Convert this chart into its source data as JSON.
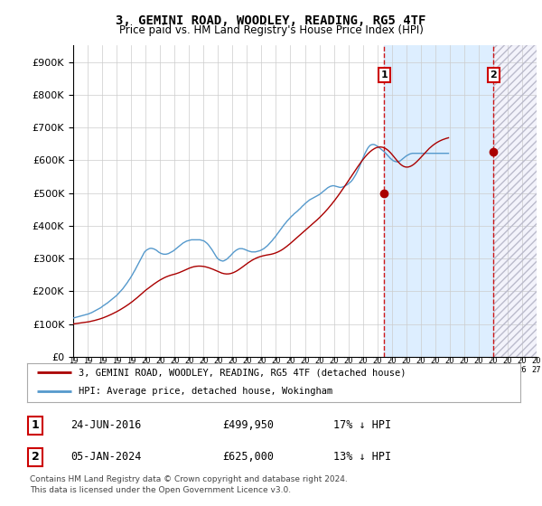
{
  "title": "3, GEMINI ROAD, WOODLEY, READING, RG5 4TF",
  "subtitle": "Price paid vs. HM Land Registry's House Price Index (HPI)",
  "legend_line1": "3, GEMINI ROAD, WOODLEY, READING, RG5 4TF (detached house)",
  "legend_line2": "HPI: Average price, detached house, Wokingham",
  "footnote1": "Contains HM Land Registry data © Crown copyright and database right 2024.",
  "footnote2": "This data is licensed under the Open Government Licence v3.0.",
  "transaction1_label": "1",
  "transaction1_date": "24-JUN-2016",
  "transaction1_price": "£499,950",
  "transaction1_hpi": "17% ↓ HPI",
  "transaction2_label": "2",
  "transaction2_date": "05-JAN-2024",
  "transaction2_price": "£625,000",
  "transaction2_hpi": "13% ↓ HPI",
  "hpi_color": "#5599cc",
  "price_color": "#aa0000",
  "vline_color": "#cc0000",
  "plot_bg": "#ffffff",
  "shade_between_color": "#ddeeff",
  "shade_future_color": "#e8e8e8",
  "ylim": [
    0,
    950000
  ],
  "yticks": [
    0,
    100000,
    200000,
    300000,
    400000,
    500000,
    600000,
    700000,
    800000,
    900000
  ],
  "xlim_start": 1995,
  "xlim_end": 2027,
  "transaction1_x": 2016.47,
  "transaction2_x": 2024.02,
  "transaction1_y": 499950,
  "transaction2_y": 625000,
  "hpi_data_monthly": {
    "start_year": 1995,
    "start_month": 1,
    "values": [
      118000,
      119000,
      120000,
      121000,
      122000,
      123000,
      124000,
      125000,
      126000,
      127000,
      128000,
      129000,
      130000,
      131000,
      133000,
      134000,
      136000,
      138000,
      140000,
      142000,
      144000,
      146000,
      148000,
      150000,
      153000,
      156000,
      158000,
      161000,
      163000,
      166000,
      169000,
      172000,
      175000,
      178000,
      181000,
      184000,
      187000,
      191000,
      195000,
      199000,
      203000,
      207000,
      212000,
      217000,
      222000,
      227000,
      233000,
      238000,
      244000,
      250000,
      257000,
      263000,
      270000,
      277000,
      284000,
      291000,
      298000,
      305000,
      312000,
      319000,
      323000,
      326000,
      328000,
      330000,
      331000,
      331000,
      330000,
      329000,
      327000,
      325000,
      322000,
      319000,
      317000,
      315000,
      314000,
      313000,
      313000,
      313000,
      314000,
      315000,
      317000,
      319000,
      321000,
      323000,
      326000,
      329000,
      332000,
      335000,
      338000,
      341000,
      344000,
      347000,
      349000,
      351000,
      353000,
      354000,
      355000,
      356000,
      357000,
      357000,
      357000,
      357000,
      357000,
      357000,
      357000,
      357000,
      356000,
      355000,
      354000,
      352000,
      349000,
      346000,
      342000,
      337000,
      332000,
      327000,
      321000,
      315000,
      309000,
      303000,
      299000,
      296000,
      294000,
      293000,
      292000,
      293000,
      295000,
      297000,
      300000,
      304000,
      307000,
      311000,
      315000,
      319000,
      322000,
      325000,
      327000,
      329000,
      330000,
      330000,
      330000,
      329000,
      328000,
      326000,
      325000,
      323000,
      322000,
      321000,
      320000,
      320000,
      320000,
      320000,
      321000,
      322000,
      323000,
      324000,
      326000,
      328000,
      330000,
      333000,
      336000,
      339000,
      343000,
      347000,
      351000,
      355000,
      360000,
      364000,
      369000,
      374000,
      379000,
      384000,
      389000,
      394000,
      399000,
      404000,
      408000,
      413000,
      417000,
      421000,
      425000,
      429000,
      432000,
      436000,
      439000,
      442000,
      445000,
      449000,
      452000,
      456000,
      460000,
      463000,
      467000,
      470000,
      473000,
      476000,
      479000,
      481000,
      483000,
      485000,
      487000,
      489000,
      491000,
      493000,
      495000,
      498000,
      501000,
      504000,
      507000,
      510000,
      513000,
      516000,
      518000,
      520000,
      521000,
      522000,
      522000,
      521000,
      520000,
      519000,
      518000,
      517000,
      517000,
      518000,
      519000,
      521000,
      523000,
      525000,
      528000,
      531000,
      534000,
      538000,
      543000,
      549000,
      555000,
      562000,
      570000,
      578000,
      587000,
      596000,
      605000,
      614000,
      622000,
      629000,
      636000,
      641000,
      645000,
      647000,
      648000,
      648000,
      647000,
      645000,
      643000,
      640000,
      637000,
      634000,
      631000,
      628000,
      625000,
      621000,
      617000,
      613000,
      609000,
      605000,
      602000,
      599000,
      597000,
      596000,
      595000,
      595000,
      596000,
      598000,
      601000,
      604000,
      607000,
      610000,
      613000,
      615000,
      617000,
      619000,
      620000,
      621000,
      621000,
      621000,
      621000,
      621000,
      621000,
      621000,
      621000,
      621000,
      621000,
      621000,
      621000,
      621000,
      621000,
      621000,
      621000,
      621000,
      621000,
      621000,
      621000,
      621000,
      621000,
      621000,
      621000,
      621000,
      621000,
      621000,
      621000,
      621000,
      621000,
      621000
    ]
  },
  "price_data_monthly": {
    "start_year": 1995,
    "start_month": 1,
    "values": [
      100000,
      100500,
      101000,
      101500,
      102000,
      102500,
      103000,
      103500,
      104000,
      104500,
      105000,
      105500,
      106000,
      106700,
      107500,
      108300,
      109200,
      110100,
      111000,
      112000,
      113000,
      114100,
      115200,
      116400,
      117600,
      119000,
      120400,
      121900,
      123400,
      125000,
      126600,
      128300,
      130000,
      131800,
      133600,
      135500,
      137400,
      139400,
      141500,
      143600,
      145800,
      148000,
      150300,
      152700,
      155100,
      157600,
      160200,
      162800,
      165500,
      168300,
      171200,
      174100,
      177100,
      180200,
      183300,
      186500,
      189800,
      193100,
      196500,
      200000,
      202800,
      205600,
      208400,
      211200,
      214000,
      216800,
      219500,
      222100,
      224700,
      227200,
      229600,
      232000,
      234200,
      236300,
      238300,
      240200,
      242000,
      243700,
      245200,
      246600,
      247900,
      249100,
      250100,
      251000,
      252000,
      253100,
      254300,
      255600,
      257000,
      258500,
      260100,
      261700,
      263400,
      265100,
      266800,
      268500,
      270000,
      271400,
      272700,
      273800,
      274800,
      275500,
      276100,
      276500,
      276700,
      276700,
      276500,
      276200,
      275700,
      275000,
      274200,
      273200,
      272100,
      270900,
      269600,
      268200,
      266700,
      265100,
      263400,
      261700,
      260000,
      258400,
      256900,
      255600,
      254500,
      253600,
      253000,
      252700,
      252700,
      253000,
      253600,
      254500,
      255700,
      257200,
      258900,
      260800,
      263000,
      265300,
      267800,
      270400,
      273100,
      275900,
      278700,
      281500,
      284200,
      286800,
      289300,
      291700,
      294000,
      296100,
      298100,
      299900,
      301600,
      303100,
      304500,
      305700,
      306800,
      307800,
      308700,
      309500,
      310200,
      310800,
      311400,
      312100,
      312800,
      313700,
      314700,
      315900,
      317200,
      318700,
      320400,
      322200,
      324200,
      326400,
      328800,
      331400,
      334100,
      336900,
      339800,
      342800,
      345900,
      349100,
      352300,
      355600,
      358900,
      362200,
      365500,
      368800,
      372100,
      375400,
      378600,
      381800,
      385000,
      388200,
      391400,
      394600,
      397800,
      401000,
      404200,
      407400,
      410700,
      414000,
      417400,
      420800,
      424300,
      427900,
      431600,
      435400,
      439300,
      443300,
      447400,
      451600,
      455900,
      460300,
      464800,
      469400,
      474100,
      478900,
      483800,
      488800,
      493900,
      499100,
      504300,
      509600,
      515000,
      520400,
      525800,
      531300,
      536800,
      542300,
      547800,
      553400,
      559000,
      564600,
      570100,
      575600,
      581000,
      586300,
      591500,
      596500,
      601300,
      606000,
      610500,
      614700,
      618700,
      622400,
      625800,
      628900,
      631600,
      634000,
      636100,
      637800,
      639100,
      639900,
      640300,
      640200,
      639700,
      638700,
      637200,
      635200,
      632700,
      629800,
      626400,
      622600,
      618400,
      614000,
      609400,
      604800,
      600300,
      596000,
      592000,
      588400,
      585300,
      582800,
      580900,
      579600,
      579000,
      578900,
      579500,
      580600,
      582200,
      584300,
      586800,
      589700,
      593000,
      596500,
      600200,
      604100,
      608100,
      612200,
      616400,
      620500,
      624500,
      628400,
      632100,
      635700,
      639000,
      642200,
      645200,
      648000,
      650600,
      653000,
      655200,
      657200,
      659100,
      660800,
      662400,
      663800,
      665100,
      666300,
      667400,
      668400
    ]
  }
}
